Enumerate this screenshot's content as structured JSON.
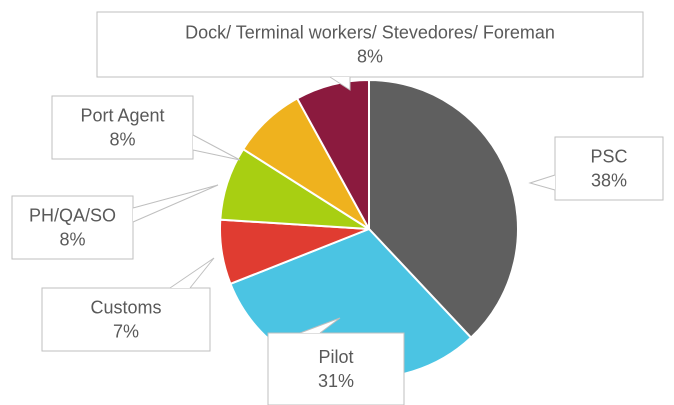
{
  "chart_data": {
    "type": "pie",
    "categories": [
      "PSC",
      "Pilot",
      "Customs",
      "PH/QA/SO",
      "Port Agent",
      "Dock/ Terminal workers/ Stevedores/ Foreman"
    ],
    "values": [
      38,
      31,
      7,
      8,
      8,
      8
    ],
    "value_labels": [
      "38%",
      "31%",
      "7%",
      "8%",
      "8%",
      "8%"
    ],
    "colors": [
      "#5f5f5f",
      "#4bc4e3",
      "#e03c31",
      "#a8cf12",
      "#efb21e",
      "#8b1a3e"
    ]
  }
}
